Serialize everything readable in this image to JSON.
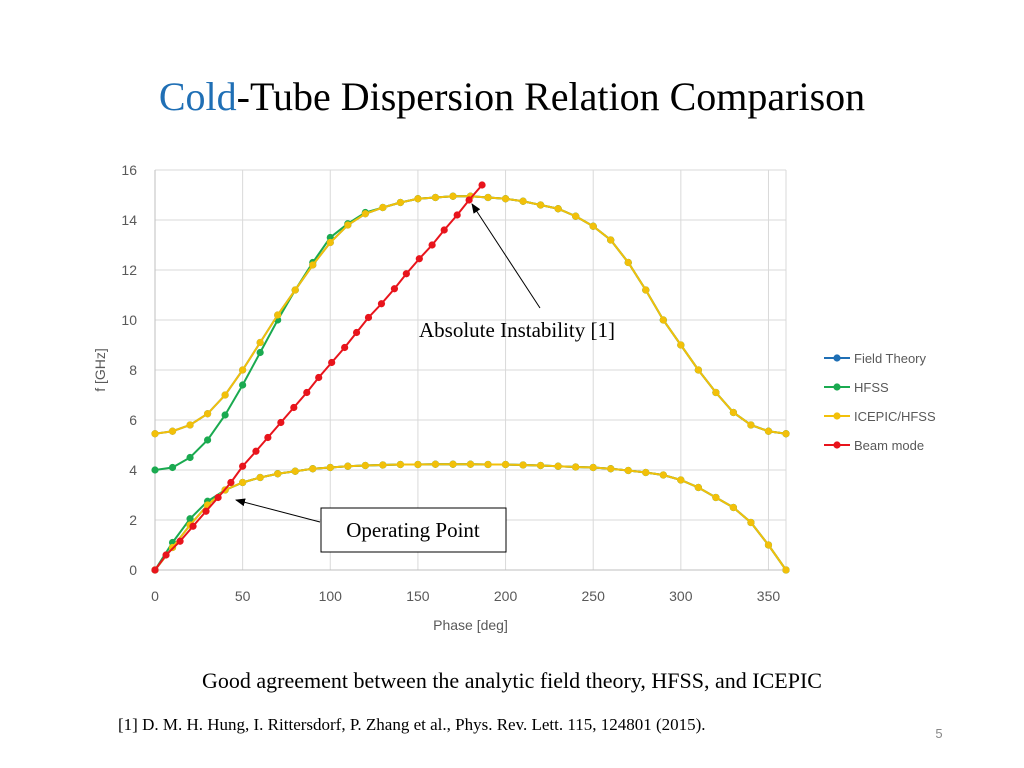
{
  "title_highlight": "Cold",
  "title_rest": "-Tube Dispersion Relation Comparison",
  "caption": "Good agreement between the analytic field theory, HFSS, and ICEPIC",
  "reference": "[1] D. M. H. Hung, I. Rittersdorf, P. Zhang et al., Phys. Rev. Lett. 115, 124801 (2015).",
  "page_number": "5",
  "chart_data": {
    "type": "line",
    "x_label": "Phase [deg]",
    "y_label": "f [GHz]",
    "annotations": [
      "Absolute Instability [1]",
      "Operating Point"
    ],
    "xlim": [
      0,
      360
    ],
    "xticks": [
      0,
      50,
      100,
      150,
      200,
      250,
      300,
      350
    ],
    "ylim": [
      0,
      16
    ],
    "yticks": [
      0,
      2,
      4,
      6,
      8,
      10,
      12,
      14,
      16
    ],
    "grid": true,
    "legend": "right",
    "x": [
      0,
      10,
      20,
      30,
      40,
      50,
      60,
      70,
      80,
      90,
      100,
      110,
      120,
      130,
      140,
      150,
      160,
      170,
      180,
      190,
      200,
      210,
      220,
      230,
      240,
      250,
      260,
      270,
      280,
      290,
      300,
      310,
      320,
      330,
      340,
      350,
      360,
      null,
      0,
      10,
      20,
      30,
      40,
      50,
      60,
      70,
      80,
      90,
      100,
      110,
      120,
      130,
      140,
      150,
      160,
      170,
      180,
      190,
      200,
      210,
      220,
      230,
      240,
      250,
      260,
      270,
      280,
      290,
      300,
      310,
      320,
      330,
      340,
      350,
      360
    ],
    "series": [
      {
        "name": "Field Theory",
        "color": "#1f6fb5",
        "values": [
          5.45,
          5.55,
          5.8,
          6.25,
          7.0,
          8.0,
          9.1,
          10.2,
          11.2,
          12.2,
          13.1,
          13.8,
          14.25,
          14.5,
          14.7,
          14.85,
          14.9,
          14.95,
          14.95,
          14.9,
          14.85,
          14.75,
          14.6,
          14.45,
          14.15,
          13.75,
          13.2,
          12.3,
          11.2,
          10.0,
          9.0,
          8.0,
          7.1,
          6.3,
          5.8,
          5.55,
          5.45,
          null,
          0,
          0.9,
          1.8,
          2.6,
          3.2,
          3.5,
          3.7,
          3.85,
          3.95,
          4.05,
          4.1,
          4.15,
          4.18,
          4.2,
          4.22,
          4.22,
          4.23,
          4.23,
          4.23,
          4.22,
          4.22,
          4.2,
          4.18,
          4.15,
          4.12,
          4.1,
          4.05,
          3.98,
          3.9,
          3.8,
          3.6,
          3.3,
          2.9,
          2.5,
          1.9,
          1.0,
          0
        ]
      },
      {
        "name": "HFSS",
        "color": "#1aaa50",
        "values": [
          4.0,
          4.1,
          4.5,
          5.2,
          6.2,
          7.4,
          8.7,
          10.0,
          11.2,
          12.3,
          13.3,
          13.85,
          14.3,
          14.5,
          14.7,
          14.85,
          14.9,
          14.95,
          14.95,
          14.9,
          14.85,
          14.75,
          14.6,
          14.45,
          14.15,
          13.75,
          13.2,
          12.3,
          11.2,
          10.0,
          9.0,
          8.0,
          7.1,
          6.3,
          5.8,
          5.55,
          5.45,
          null,
          0,
          1.1,
          2.05,
          2.75,
          3.2,
          3.5,
          3.7,
          3.85,
          3.95,
          4.05,
          4.1,
          4.15,
          4.18,
          4.2,
          4.22,
          4.22,
          4.23,
          4.23,
          4.23,
          4.22,
          4.22,
          4.2,
          4.18,
          4.15,
          4.12,
          4.1,
          4.05,
          3.98,
          3.9,
          3.8,
          3.6,
          3.3,
          2.9,
          2.5,
          1.9,
          1.0,
          0
        ]
      },
      {
        "name": "ICEPIC/HFSS",
        "color": "#f2c00a",
        "values": [
          5.45,
          5.55,
          5.8,
          6.25,
          7.0,
          8.0,
          9.1,
          10.2,
          11.2,
          12.2,
          13.1,
          13.8,
          14.25,
          14.5,
          14.7,
          14.85,
          14.9,
          14.95,
          14.95,
          14.9,
          14.85,
          14.75,
          14.6,
          14.45,
          14.15,
          13.75,
          13.2,
          12.3,
          11.2,
          10.0,
          9.0,
          8.0,
          7.1,
          6.3,
          5.8,
          5.55,
          5.45,
          null,
          0,
          0.9,
          1.8,
          2.6,
          3.2,
          3.5,
          3.7,
          3.85,
          3.95,
          4.05,
          4.1,
          4.15,
          4.18,
          4.2,
          4.22,
          4.22,
          4.23,
          4.23,
          4.23,
          4.22,
          4.22,
          4.2,
          4.18,
          4.15,
          4.12,
          4.1,
          4.05,
          3.98,
          3.9,
          3.8,
          3.6,
          3.3,
          2.9,
          2.5,
          1.9,
          1.0,
          0
        ]
      },
      {
        "name": "Beam mode",
        "color": "#e8141c",
        "x": [
          0,
          6.3,
          14.3,
          21.7,
          29.1,
          36,
          43.3,
          50,
          57.6,
          64.4,
          71.8,
          79.2,
          86.6,
          93.4,
          100.8,
          108.2,
          115,
          121.8,
          129.2,
          136.6,
          143.4,
          150.8,
          158.1,
          165,
          172.4,
          179.2,
          186.6
        ],
        "values": [
          0,
          0.6,
          1.15,
          1.75,
          2.35,
          2.9,
          3.5,
          4.15,
          4.75,
          5.3,
          5.9,
          6.5,
          7.1,
          7.7,
          8.3,
          8.9,
          9.5,
          10.1,
          10.65,
          11.25,
          11.85,
          12.45,
          13.0,
          13.6,
          14.2,
          14.8,
          15.4
        ]
      }
    ]
  }
}
